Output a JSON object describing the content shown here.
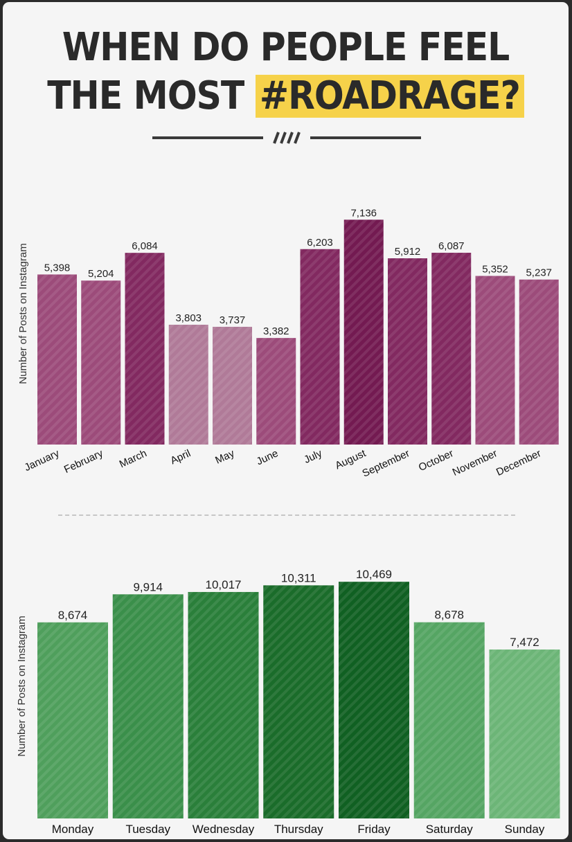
{
  "title": {
    "line1": "WHEN DO PEOPLE FEEL",
    "line2_prefix": "THE MOST",
    "line2_highlight": "#ROADRAGE?"
  },
  "colors": {
    "monthly": [
      "#9c4b7a",
      "#9c4b7a",
      "#822960",
      "#b07a98",
      "#b07a98",
      "#9c4b7a",
      "#822960",
      "#731a51",
      "#822960",
      "#822960",
      "#9c4b7a",
      "#9c4b7a"
    ],
    "weekly": [
      "#4f9f5c",
      "#3a8f4a",
      "#2a7f3a",
      "#1a6c2a",
      "#106022",
      "#55a563",
      "#6cb577"
    ],
    "highlight": "#f6d24a"
  },
  "chart_data": [
    {
      "type": "bar",
      "ylabel": "Number of Posts on Instagram",
      "xlabel": "",
      "categories": [
        "January",
        "February",
        "March",
        "April",
        "May",
        "June",
        "July",
        "August",
        "September",
        "October",
        "November",
        "December"
      ],
      "values": [
        5398,
        5204,
        6084,
        3803,
        3737,
        3382,
        6203,
        7136,
        5912,
        6087,
        5352,
        5237
      ],
      "labels": [
        "5,398",
        "5,204",
        "6,084",
        "3,803",
        "3,737",
        "3,382",
        "6,203",
        "7,136",
        "5,912",
        "6,087",
        "5,352",
        "5,237"
      ],
      "grid": false
    },
    {
      "type": "bar",
      "ylabel": "Number of Posts on Instagram",
      "xlabel": "",
      "categories": [
        "Monday",
        "Tuesday",
        "Wednesday",
        "Thursday",
        "Friday",
        "Saturday",
        "Sunday"
      ],
      "values": [
        8674,
        9914,
        10017,
        10311,
        10469,
        8678,
        7472
      ],
      "labels": [
        "8,674",
        "9,914",
        "10,017",
        "10,311",
        "10,469",
        "8,678",
        "7,472"
      ],
      "grid": false
    }
  ]
}
